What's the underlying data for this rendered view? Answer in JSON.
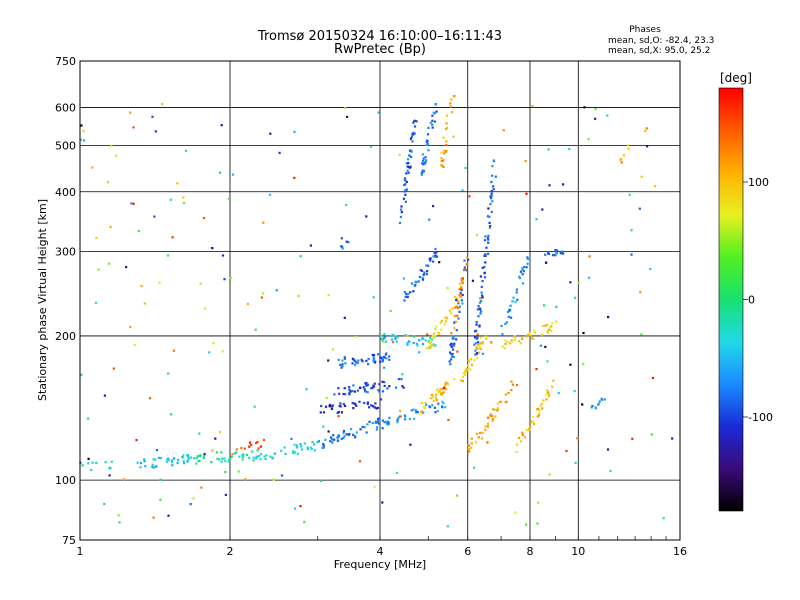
{
  "chart_data": {
    "type": "scatter",
    "title": "Tromsø 20150324 16:10:00–16:11:43",
    "subtitle": "RwPretec (Bp)",
    "xlabel": "Frequency [MHz]",
    "ylabel": "Stationary phase Virtual Height [km]",
    "x_scale": "log",
    "y_scale": "log",
    "xlim": [
      1,
      16
    ],
    "ylim": [
      75,
      750
    ],
    "grid": true,
    "x_ticks": [
      "1",
      "2",
      "4",
      "6",
      "8",
      "10",
      "16"
    ],
    "y_ticks": [
      "75",
      "100",
      "200",
      "300",
      "400",
      "500",
      "600",
      "750"
    ],
    "legend": {
      "title": "Phases",
      "lines": [
        "mean, sd,O: -82.4, 23.3",
        "mean, sd,X:  95.0, 25.2"
      ]
    },
    "colorbar": {
      "label": "[deg]",
      "range": [
        -180,
        180
      ],
      "ticks": [
        "100",
        "0",
        "-100"
      ],
      "colors": [
        "#000000",
        "#3b0a7a",
        "#1a2bd6",
        "#1a8cff",
        "#22d8e8",
        "#18e070",
        "#50f020",
        "#e8f020",
        "#ffb000",
        "#ff5a00",
        "#ff0000"
      ]
    },
    "series": [
      {
        "comment": "O-mode trace segments (phase near -80 deg, blue/purple)",
        "traces": [
          {
            "f0": 1.02,
            "f1": 1.15,
            "h0": 106,
            "h1": 107,
            "phase": -5,
            "n": 10
          },
          {
            "f0": 1.3,
            "f1": 1.7,
            "h0": 108,
            "h1": 111,
            "phase": -40,
            "n": 40
          },
          {
            "f0": 1.7,
            "f1": 2.2,
            "h0": 111,
            "h1": 113,
            "phase": -10,
            "n": 30
          },
          {
            "f0": 2.2,
            "f1": 3.0,
            "h0": 112,
            "h1": 118,
            "phase": -30,
            "n": 40
          },
          {
            "f0": 3.0,
            "f1": 4.0,
            "h0": 118,
            "h1": 132,
            "phase": -80,
            "n": 50
          },
          {
            "f0": 3.2,
            "f1": 4.2,
            "h0": 175,
            "h1": 182,
            "phase": -85,
            "n": 45
          },
          {
            "f0": 3.2,
            "f1": 4.5,
            "h0": 152,
            "h1": 160,
            "phase": -100,
            "n": 45
          },
          {
            "f0": 3.0,
            "f1": 4.0,
            "h0": 140,
            "h1": 145,
            "phase": -120,
            "n": 35
          },
          {
            "f0": 4.0,
            "f1": 5.2,
            "h0": 200,
            "h1": 192,
            "phase": -40,
            "n": 40
          },
          {
            "f0": 4.0,
            "f1": 5.5,
            "h0": 130,
            "h1": 145,
            "phase": -70,
            "n": 40
          },
          {
            "f0": 4.5,
            "f1": 5.2,
            "h0": 240,
            "h1": 300,
            "phase": -90,
            "n": 40
          },
          {
            "f0": 4.4,
            "f1": 4.7,
            "h0": 350,
            "h1": 560,
            "phase": -95,
            "n": 45
          },
          {
            "f0": 4.8,
            "f1": 5.2,
            "h0": 420,
            "h1": 620,
            "phase": -80,
            "n": 35
          },
          {
            "f0": 5.5,
            "f1": 6.0,
            "h0": 170,
            "h1": 300,
            "phase": -85,
            "n": 40
          },
          {
            "f0": 6.2,
            "f1": 6.8,
            "h0": 180,
            "h1": 460,
            "phase": -90,
            "n": 70
          },
          {
            "f0": 7.0,
            "f1": 8.0,
            "h0": 200,
            "h1": 300,
            "phase": -70,
            "n": 30
          },
          {
            "f0": 8.5,
            "f1": 9.3,
            "h0": 290,
            "h1": 300,
            "phase": -80,
            "n": 15
          },
          {
            "f0": 3.3,
            "f1": 3.5,
            "h0": 310,
            "h1": 320,
            "phase": -80,
            "n": 6
          },
          {
            "f0": 10.5,
            "f1": 11.5,
            "h0": 140,
            "h1": 150,
            "phase": -70,
            "n": 10
          }
        ]
      },
      {
        "comment": "X-mode trace segments (phase near +95 deg, yellow/green)",
        "traces": [
          {
            "f0": 4.8,
            "f1": 5.6,
            "h0": 140,
            "h1": 160,
            "phase": 100,
            "n": 35
          },
          {
            "f0": 5.0,
            "f1": 5.7,
            "h0": 190,
            "h1": 240,
            "phase": 80,
            "n": 30
          },
          {
            "f0": 5.3,
            "f1": 5.6,
            "h0": 440,
            "h1": 640,
            "phase": 110,
            "n": 25
          },
          {
            "f0": 5.8,
            "f1": 6.5,
            "h0": 160,
            "h1": 200,
            "phase": 90,
            "n": 35
          },
          {
            "f0": 6.0,
            "f1": 7.5,
            "h0": 115,
            "h1": 160,
            "phase": 110,
            "n": 40
          },
          {
            "f0": 7.0,
            "f1": 9.0,
            "h0": 190,
            "h1": 210,
            "phase": 95,
            "n": 35
          },
          {
            "f0": 7.5,
            "f1": 9.0,
            "h0": 115,
            "h1": 160,
            "phase": 100,
            "n": 35
          },
          {
            "f0": 5.5,
            "f1": 6.0,
            "h0": 185,
            "h1": 300,
            "phase": 120,
            "n": 25
          },
          {
            "f0": 12.0,
            "f1": 14.0,
            "h0": 460,
            "h1": 560,
            "phase": 110,
            "n": 8
          },
          {
            "f0": 2.0,
            "f1": 2.4,
            "h0": 112,
            "h1": 122,
            "phase": 150,
            "n": 12
          }
        ]
      },
      {
        "comment": "scattered noise points",
        "noise": {
          "n": 220,
          "fmin": 1.0,
          "fmax": 15.5,
          "hmin": 80,
          "hmax": 620
        }
      }
    ]
  }
}
